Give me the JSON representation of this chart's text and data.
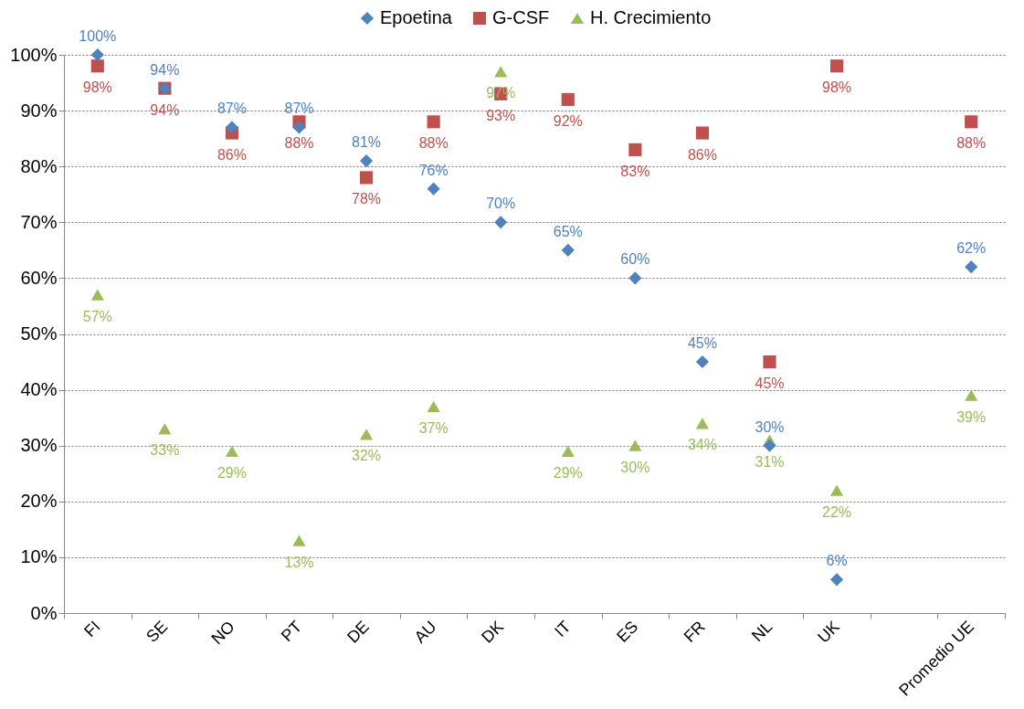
{
  "chart_data": {
    "type": "scatter",
    "categories": [
      "FI",
      "SE",
      "NO",
      "PT",
      "DE",
      "AU",
      "DK",
      "IT",
      "ES",
      "FR",
      "NL",
      "UK",
      null,
      "Promedio UE"
    ],
    "series": [
      {
        "name": "Epoetina",
        "color": "#4f81bd",
        "marker": "diamond",
        "values": [
          100,
          94,
          87,
          87,
          81,
          76,
          70,
          65,
          60,
          45,
          30,
          6,
          null,
          62
        ],
        "value_labels": [
          "100%",
          "94%",
          "87%",
          "87%",
          "81%",
          "76%",
          "70%",
          "65%",
          "60%",
          "45%",
          "30%",
          "6%",
          null,
          "62%"
        ]
      },
      {
        "name": "G-CSF",
        "color": "#c0504d",
        "marker": "square",
        "values": [
          98,
          94,
          86,
          88,
          78,
          88,
          93,
          92,
          83,
          86,
          45,
          98,
          null,
          88
        ],
        "value_labels": [
          "98%",
          "94%",
          "86%",
          "88%",
          "78%",
          "88%",
          "93%",
          "92%",
          "83%",
          "86%",
          "45%",
          "98%",
          null,
          "88%"
        ]
      },
      {
        "name": "H. Crecimiento",
        "color": "#9bbb59",
        "marker": "triangle",
        "values": [
          57,
          33,
          29,
          13,
          32,
          37,
          97,
          29,
          30,
          34,
          31,
          22,
          null,
          39
        ],
        "value_labels": [
          "57%",
          "33%",
          "29%",
          "13%",
          "32%",
          "37%",
          "97%",
          "29%",
          "30%",
          "34%",
          "31%",
          "22%",
          null,
          "39%"
        ]
      }
    ],
    "ylim": [
      0,
      100
    ],
    "yticks": [
      {
        "value": 0,
        "label": "0%"
      },
      {
        "value": 10,
        "label": "10%"
      },
      {
        "value": 20,
        "label": "20%"
      },
      {
        "value": 30,
        "label": "30%"
      },
      {
        "value": 40,
        "label": "40%"
      },
      {
        "value": 50,
        "label": "50%"
      },
      {
        "value": 60,
        "label": "60%"
      },
      {
        "value": 70,
        "label": "70%"
      },
      {
        "value": 80,
        "label": "80%"
      },
      {
        "value": 90,
        "label": "90%"
      },
      {
        "value": 100,
        "label": "100%"
      }
    ],
    "grid": "y",
    "legend": "top"
  }
}
